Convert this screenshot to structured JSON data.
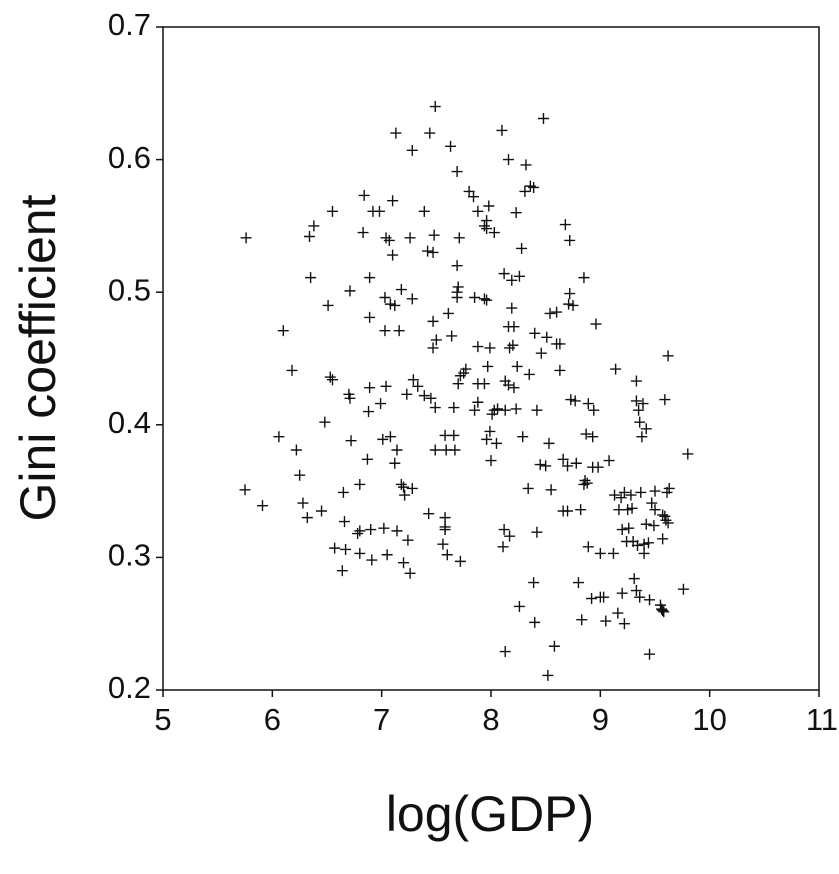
{
  "chart_data": {
    "type": "scatter",
    "xlabel": "log(GDP)",
    "ylabel": "Gini coefficient",
    "xlim": [
      5,
      11
    ],
    "ylim": [
      0.2,
      0.7
    ],
    "xticks": [
      5,
      6,
      7,
      8,
      9,
      10,
      11
    ],
    "yticks": [
      0.2,
      0.3,
      0.4,
      0.5,
      0.6,
      0.7
    ],
    "grid": false,
    "color": "#111111",
    "x": [
      5.76,
      5.75,
      5.91,
      6.1,
      6.06,
      6.18,
      6.22,
      6.25,
      6.28,
      6.32,
      6.34,
      6.38,
      6.35,
      6.45,
      6.48,
      6.51,
      6.55,
      6.53,
      6.55,
      6.57,
      6.65,
      6.66,
      6.64,
      6.67,
      6.7,
      6.71,
      6.71,
      6.72,
      6.78,
      6.8,
      6.8,
      6.8,
      6.84,
      6.83,
      6.87,
      6.88,
      6.89,
      6.9,
      6.91,
      6.89,
      6.89,
      6.92,
      6.98,
      6.99,
      7.01,
      7.02,
      7.04,
      7.08,
      7.04,
      7.07,
      7.08,
      7.03,
      7.03,
      7.05,
      7.1,
      7.1,
      7.12,
      7.12,
      7.14,
      7.14,
      7.13,
      7.16,
      7.18,
      7.18,
      7.2,
      7.2,
      7.21,
      7.23,
      7.24,
      7.26,
      7.26,
      7.28,
      7.28,
      7.29,
      7.28,
      7.33,
      7.39,
      7.39,
      7.44,
      7.43,
      7.42,
      7.45,
      7.47,
      7.49,
      7.47,
      7.48,
      7.49,
      7.47,
      7.5,
      7.49,
      7.58,
      7.58,
      7.58,
      7.6,
      7.58,
      7.59,
      7.56,
      7.61,
      7.63,
      7.66,
      7.64,
      7.66,
      7.67,
      7.69,
      7.69,
      7.69,
      7.69,
      7.7,
      7.7,
      7.71,
      7.72,
      7.72,
      7.75,
      7.77,
      7.8,
      7.84,
      7.85,
      7.88,
      7.85,
      7.88,
      7.88,
      7.88,
      7.94,
      7.94,
      7.96,
      7.94,
      7.96,
      7.96,
      7.96,
      7.98,
      7.97,
      7.99,
      8.0,
      7.99,
      8.01,
      8.03,
      8.03,
      8.06,
      8.05,
      8.1,
      8.12,
      8.12,
      8.11,
      8.13,
      8.13,
      8.13,
      8.16,
      8.16,
      8.16,
      8.17,
      8.17,
      8.19,
      8.19,
      8.2,
      8.21,
      8.21,
      8.23,
      8.23,
      8.24,
      8.26,
      8.26,
      8.28,
      8.29,
      8.31,
      8.32,
      8.34,
      8.35,
      8.36,
      8.39,
      8.39,
      8.4,
      8.4,
      8.42,
      8.42,
      8.45,
      8.46,
      8.48,
      8.5,
      8.51,
      8.52,
      8.53,
      8.54,
      8.55,
      8.58,
      8.6,
      8.6,
      8.63,
      8.63,
      8.66,
      8.66,
      8.68,
      8.7,
      8.7,
      8.72,
      8.71,
      8.72,
      8.73,
      8.75,
      8.77,
      8.78,
      8.8,
      8.82,
      8.83,
      8.85,
      8.85,
      8.86,
      8.87,
      8.88,
      8.89,
      8.89,
      8.92,
      8.93,
      8.93,
      8.94,
      8.96,
      8.98,
      9.0,
      9.0,
      9.03,
      9.05,
      9.08,
      9.12,
      9.13,
      9.14,
      9.16,
      9.17,
      9.19,
      9.2,
      9.2,
      9.22,
      9.22,
      9.24,
      9.25,
      9.26,
      9.28,
      9.29,
      9.3,
      9.31,
      9.33,
      9.33,
      9.33,
      9.34,
      9.35,
      9.36,
      9.36,
      9.37,
      9.38,
      9.39,
      9.4,
      9.4,
      9.42,
      9.42,
      9.44,
      9.45,
      9.45,
      9.47,
      9.49,
      9.5,
      9.5,
      9.55,
      9.56,
      9.57,
      9.57,
      9.57,
      9.58,
      9.59,
      9.59,
      9.6,
      9.61,
      9.62,
      9.63,
      9.62,
      9.76,
      9.8
    ],
    "values": [
      0.541,
      0.351,
      0.339,
      0.471,
      0.391,
      0.441,
      0.381,
      0.362,
      0.341,
      0.33,
      0.542,
      0.55,
      0.511,
      0.335,
      0.402,
      0.49,
      0.561,
      0.436,
      0.434,
      0.307,
      0.349,
      0.327,
      0.29,
      0.306,
      0.423,
      0.42,
      0.501,
      0.388,
      0.318,
      0.32,
      0.303,
      0.355,
      0.573,
      0.545,
      0.374,
      0.41,
      0.428,
      0.321,
      0.298,
      0.481,
      0.511,
      0.561,
      0.561,
      0.416,
      0.389,
      0.322,
      0.429,
      0.391,
      0.541,
      0.539,
      0.491,
      0.471,
      0.496,
      0.302,
      0.569,
      0.528,
      0.49,
      0.371,
      0.381,
      0.32,
      0.62,
      0.471,
      0.355,
      0.502,
      0.353,
      0.296,
      0.347,
      0.423,
      0.313,
      0.288,
      0.541,
      0.495,
      0.607,
      0.434,
      0.352,
      0.429,
      0.561,
      0.422,
      0.62,
      0.333,
      0.531,
      0.42,
      0.53,
      0.413,
      0.478,
      0.543,
      0.64,
      0.458,
      0.464,
      0.381,
      0.392,
      0.33,
      0.323,
      0.302,
      0.321,
      0.381,
      0.31,
      0.484,
      0.61,
      0.392,
      0.467,
      0.413,
      0.381,
      0.591,
      0.52,
      0.496,
      0.5,
      0.504,
      0.431,
      0.541,
      0.437,
      0.297,
      0.439,
      0.442,
      0.576,
      0.572,
      0.496,
      0.431,
      0.411,
      0.417,
      0.459,
      0.561,
      0.431,
      0.495,
      0.494,
      0.55,
      0.554,
      0.389,
      0.548,
      0.565,
      0.444,
      0.458,
      0.373,
      0.395,
      0.408,
      0.545,
      0.411,
      0.412,
      0.386,
      0.622,
      0.514,
      0.321,
      0.308,
      0.229,
      0.433,
      0.411,
      0.43,
      0.474,
      0.6,
      0.316,
      0.458,
      0.509,
      0.488,
      0.46,
      0.474,
      0.428,
      0.56,
      0.412,
      0.444,
      0.263,
      0.512,
      0.533,
      0.391,
      0.576,
      0.596,
      0.352,
      0.438,
      0.58,
      0.579,
      0.281,
      0.251,
      0.469,
      0.411,
      0.319,
      0.37,
      0.454,
      0.631,
      0.369,
      0.466,
      0.211,
      0.386,
      0.484,
      0.351,
      0.233,
      0.461,
      0.485,
      0.461,
      0.441,
      0.335,
      0.374,
      0.551,
      0.335,
      0.369,
      0.539,
      0.491,
      0.499,
      0.419,
      0.49,
      0.418,
      0.371,
      0.281,
      0.336,
      0.253,
      0.511,
      0.355,
      0.358,
      0.393,
      0.356,
      0.416,
      0.308,
      0.269,
      0.368,
      0.391,
      0.411,
      0.476,
      0.368,
      0.303,
      0.27,
      0.27,
      0.252,
      0.373,
      0.303,
      0.347,
      0.442,
      0.258,
      0.336,
      0.345,
      0.321,
      0.273,
      0.349,
      0.25,
      0.312,
      0.336,
      0.322,
      0.347,
      0.337,
      0.312,
      0.284,
      0.275,
      0.418,
      0.433,
      0.309,
      0.411,
      0.27,
      0.402,
      0.349,
      0.391,
      0.416,
      0.303,
      0.31,
      0.325,
      0.397,
      0.311,
      0.268,
      0.227,
      0.341,
      0.324,
      0.336,
      0.35,
      0.264,
      0.261,
      0.332,
      0.314,
      0.26,
      0.259,
      0.331,
      0.419,
      0.328,
      0.349,
      0.452,
      0.352,
      0.326,
      0.276,
      0.378
    ]
  }
}
